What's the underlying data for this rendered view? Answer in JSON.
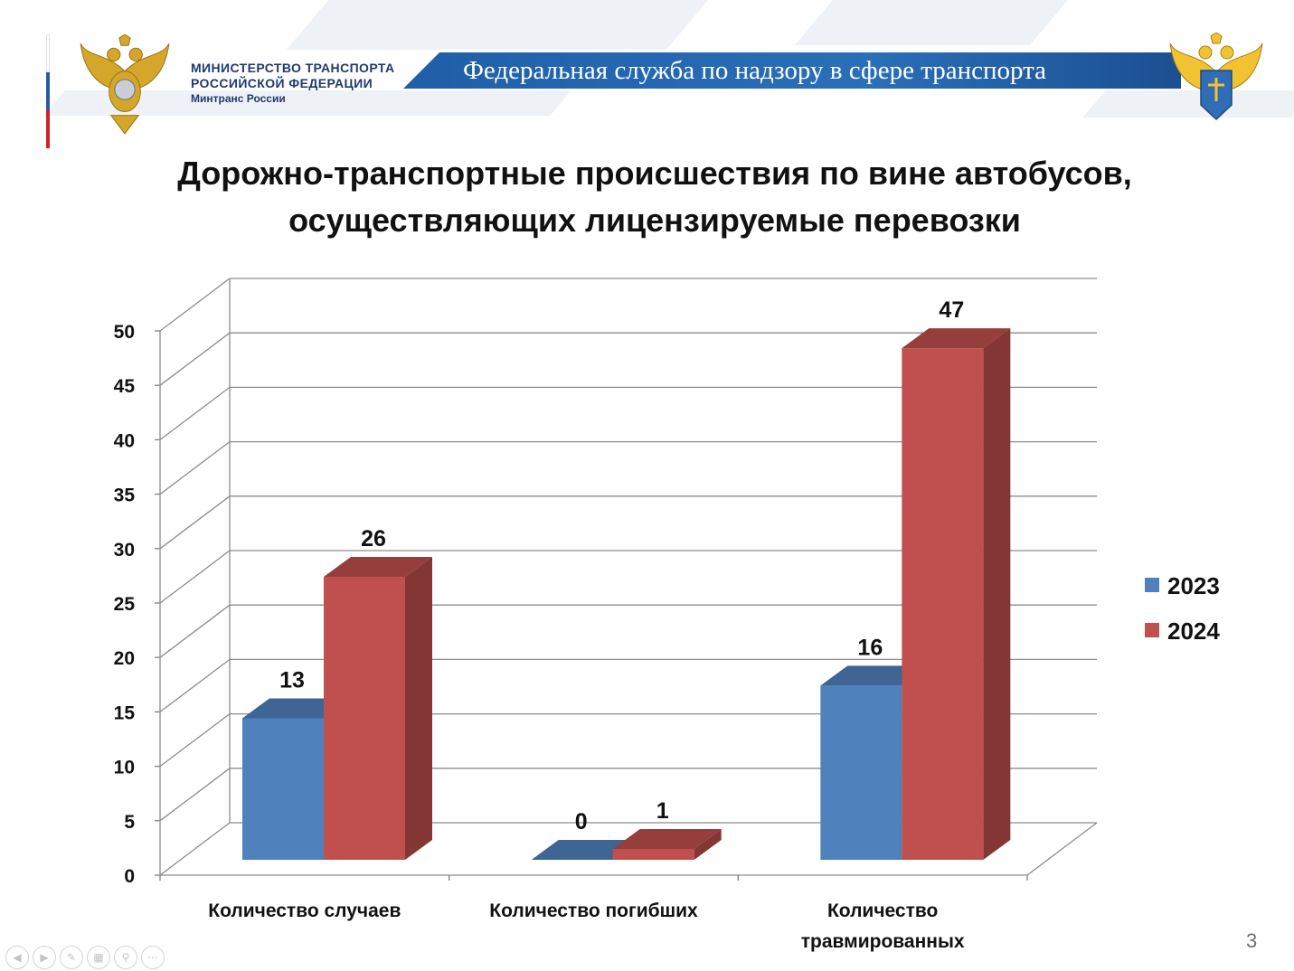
{
  "header": {
    "ministry_line1": "МИНИСТЕРСТВО ТРАНСПОРТА",
    "ministry_line2": "РОССИЙСКОЙ ФЕДЕРАЦИИ",
    "ministry_line3": "Минтранс России",
    "service_title": "Федеральная служба по надзору в сфере транспорта"
  },
  "slide": {
    "title_line1": "Дорожно-транспортные происшествия по вине автобусов,",
    "title_line2": "осуществляющих лицензируемые перевозки",
    "page_number": "3"
  },
  "colors": {
    "series_2023": "#4f81bd",
    "series_2024": "#c0504d",
    "flag_white": "#ffffff",
    "flag_blue": "#2b58a6",
    "flag_red": "#d12027",
    "banner_blue": "#1f5fa8"
  },
  "nav_icons": [
    "prev-icon",
    "next-icon",
    "pen-icon",
    "slides-icon",
    "zoom-icon",
    "more-icon"
  ],
  "chart_data": {
    "type": "bar",
    "style": "3d-clustered-column",
    "title": "",
    "categories": [
      "Количество случаев",
      "Количество погибших",
      "Количество травмированных"
    ],
    "category_lines": [
      [
        "Количество случаев"
      ],
      [
        "Количество погибших"
      ],
      [
        "Количество",
        "травмированных"
      ]
    ],
    "series": [
      {
        "name": "2023",
        "values": [
          13,
          0,
          16
        ]
      },
      {
        "name": "2024",
        "values": [
          26,
          1,
          47
        ]
      }
    ],
    "ylim": [
      0,
      50
    ],
    "yticks": [
      0,
      5,
      10,
      15,
      20,
      25,
      30,
      35,
      40,
      45,
      50
    ],
    "grid": true,
    "legend": "right",
    "data_labels": true,
    "xlabel": "",
    "ylabel": ""
  }
}
